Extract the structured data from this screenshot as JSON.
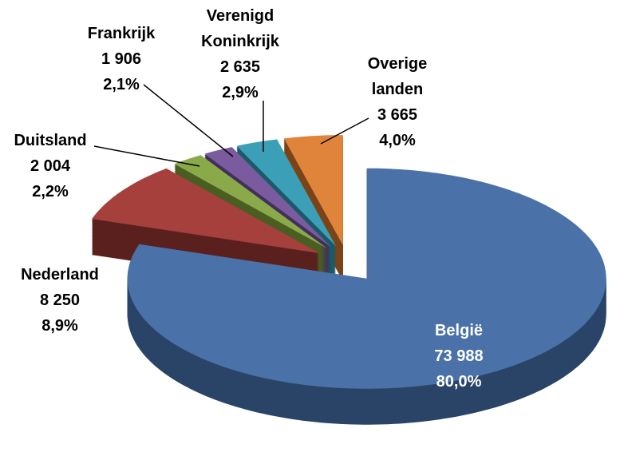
{
  "chart_data": {
    "type": "pie",
    "categories": [
      "België",
      "Nederland",
      "Duitsland",
      "Frankrijk",
      "Verenigd Koninkrijk",
      "Overige landen"
    ],
    "values": [
      73988,
      8250,
      2004,
      1906,
      2635,
      3665
    ],
    "value_labels": [
      "73 988",
      "8 250",
      "2 004",
      "1 906",
      "2 635",
      "3 665"
    ],
    "percent_labels": [
      "80,0%",
      "8,9%",
      "2,2%",
      "2,1%",
      "2,9%",
      "4,0%"
    ],
    "colors": [
      "#4a72a8",
      "#a5403d",
      "#8aaa4a",
      "#7a5b9e",
      "#3b9fb7",
      "#e0843b"
    ],
    "side_colors": [
      "#2a4468",
      "#5a201e",
      "#4a5e22",
      "#42305a",
      "#1d5a68",
      "#7a4418"
    ]
  }
}
